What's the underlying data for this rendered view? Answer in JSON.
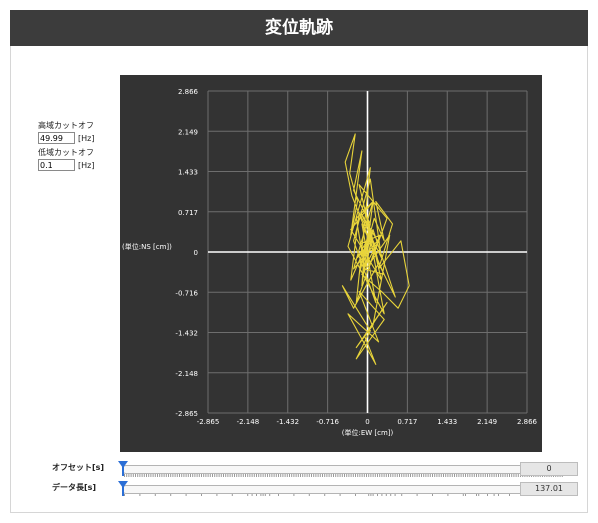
{
  "title": "変位軌跡",
  "filters": {
    "high_cut_label": "高域カットオフ",
    "high_cut_value": "49.99",
    "high_cut_unit": "[Hz]",
    "low_cut_label": "低域カットオフ",
    "low_cut_value": "0.1",
    "low_cut_unit": "[Hz]"
  },
  "sliders": {
    "offset_label": "オフセット[s]",
    "offset_value": "0",
    "length_label": "データ長[s]",
    "length_value": "137.01"
  },
  "chart_data": {
    "type": "scatter",
    "xlabel": "(単位:EW [cm])",
    "ylabel": "(単位:NS [cm])",
    "xlim": [
      -2.865,
      2.866
    ],
    "ylim": [
      -2.865,
      2.866
    ],
    "xticks": [
      "-2.865",
      "-2.148",
      "-1.432",
      "-0.716",
      "0",
      "0.717",
      "1.433",
      "2.149",
      "2.866"
    ],
    "yticks": [
      "2.866",
      "2.149",
      "1.433",
      "0.717",
      "0",
      "-0.716",
      "-1.432",
      "-2.148",
      "-2.865"
    ],
    "grid": true,
    "colors": {
      "background": "#333333",
      "grid": "#6e6e6e",
      "axis": "#ffffff",
      "trace": "#e8d43a"
    },
    "series": [
      {
        "x": [
          0,
          0.05,
          -0.12,
          0.18,
          -0.25,
          0.1,
          -0.3,
          0.25,
          -0.15,
          0.35,
          -0.2,
          0.05,
          -0.35,
          0.3,
          -0.05,
          0.2,
          -0.28,
          -0.4,
          -0.22,
          -0.32,
          -0.18,
          -0.3,
          -0.1,
          -0.25,
          0.05,
          -0.15,
          0.12,
          0.3,
          0.15,
          0.45,
          0.2,
          0.6,
          0.75,
          0.55,
          0.25,
          -0.1,
          0.4,
          0.1,
          -0.2,
          0.35,
          -0.05,
          0.15,
          -0.35,
          0.2,
          -0.15,
          0.3,
          -0.2,
          0.05,
          -0.45,
          -0.25,
          0.2,
          0.5,
          0.1,
          -0.3,
          -0.15,
          0.25,
          0.05,
          -0.25,
          0.15,
          -0.1,
          0.3,
          -0.05,
          -0.2,
          0.1,
          -0.1,
          -0.05,
          0.05,
          0.22,
          -0.12,
          -0.02,
          0.1,
          -0.18,
          0.08,
          -0.06,
          0.12,
          0
        ],
        "y": [
          0,
          0.35,
          0.7,
          0.2,
          -0.3,
          0.9,
          0.4,
          -0.5,
          1.2,
          0.6,
          -0.9,
          1.5,
          0.1,
          -1.1,
          0.8,
          -0.2,
          1.0,
          1.6,
          2.1,
          1.4,
          0.9,
          0.3,
          1.8,
          1.1,
          0.5,
          -0.4,
          0.6,
          0.2,
          0.9,
          0.5,
          -0.3,
          0.2,
          -0.6,
          -1.0,
          -0.7,
          -0.4,
          0.3,
          -1.3,
          -1.7,
          -0.9,
          -1.5,
          -2.0,
          -1.1,
          -1.6,
          -0.7,
          -1.2,
          -1.9,
          -1.4,
          -0.6,
          -1.0,
          -0.2,
          -0.8,
          0.4,
          -0.5,
          0.7,
          -0.1,
          1.3,
          0.2,
          -0.9,
          0.5,
          -0.4,
          -0.3,
          0.6,
          0.9,
          -0.6,
          0.1,
          -0.2,
          0.3,
          0.15,
          -0.25,
          0.4,
          -0.1,
          0.2,
          -0.3,
          0.05,
          0
        ]
      }
    ]
  }
}
